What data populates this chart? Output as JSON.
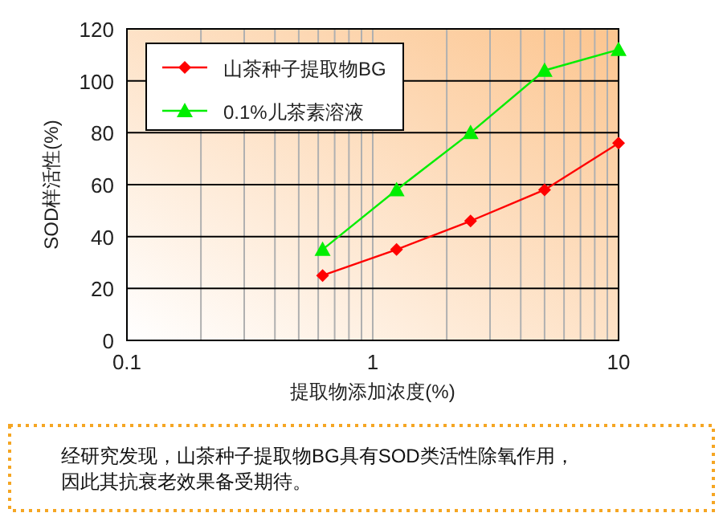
{
  "chart_data": {
    "type": "line",
    "xlabel": "提取物添加浓度(%)",
    "ylabel": "SOD样活性(%)",
    "x": [
      0.625,
      1.25,
      2.5,
      5,
      10
    ],
    "series": [
      {
        "name": "山茶种子提取物BG",
        "color": "#ff0000",
        "marker": "diamond",
        "values": [
          25,
          35,
          46,
          58,
          76
        ]
      },
      {
        "name": "0.1%儿茶素溶液",
        "color": "#00ee00",
        "marker": "triangle",
        "values": [
          35,
          58,
          80,
          104,
          112
        ]
      }
    ],
    "log": "x",
    "xlim": [
      0.1,
      10
    ],
    "xticks": [
      0.1,
      {
        "value": 0.2,
        "label": null
      },
      {
        "value": 0.3,
        "label": null
      },
      {
        "value": 0.4,
        "label": null
      },
      {
        "value": 0.5,
        "label": null
      },
      {
        "value": 0.6,
        "label": null
      },
      {
        "value": 0.7,
        "label": null
      },
      {
        "value": 0.8,
        "label": null
      },
      {
        "value": 0.9,
        "label": null
      },
      1,
      {
        "value": 2,
        "label": null
      },
      {
        "value": 3,
        "label": null
      },
      {
        "value": 4,
        "label": null
      },
      {
        "value": 5,
        "label": null
      },
      {
        "value": 6,
        "label": null
      },
      {
        "value": 7,
        "label": null
      },
      {
        "value": 8,
        "label": null
      },
      {
        "value": 9,
        "label": null
      },
      10
    ],
    "ylim": [
      0,
      120
    ],
    "yticks": [
      0,
      20,
      40,
      60,
      80,
      100,
      120
    ],
    "grid": true,
    "legend": "top left",
    "annotations": [
      "经研究发现，山茶种子提取物BG具有SOD类活性除氧作用，",
      "因此其抗衰老效果备受期待。"
    ]
  }
}
